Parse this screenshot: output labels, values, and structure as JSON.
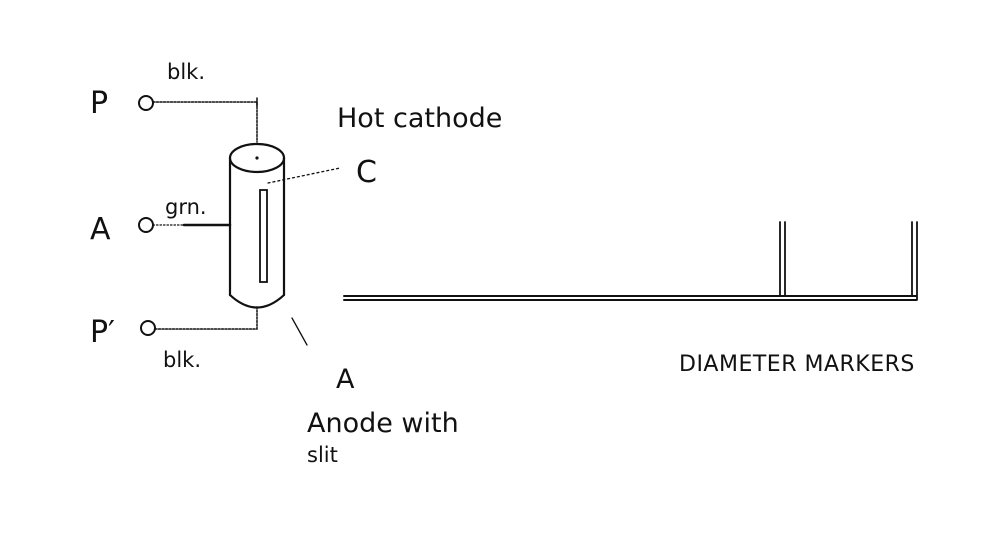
{
  "terminals": {
    "p_top": "P",
    "a": "A",
    "p_prime": "P′"
  },
  "wires": {
    "top_color": "blk.",
    "middle_color": "grn.",
    "bottom_color": "blk."
  },
  "labels": {
    "hot_cathode": "Hot cathode",
    "cathode_letter": "C",
    "anode_letter": "A",
    "anode_line1": "Anode with",
    "anode_line2": "slit",
    "diameter_markers": "DIAMETER MARKERS"
  },
  "colors": {
    "ink": "#111111",
    "background": "#ffffff"
  }
}
